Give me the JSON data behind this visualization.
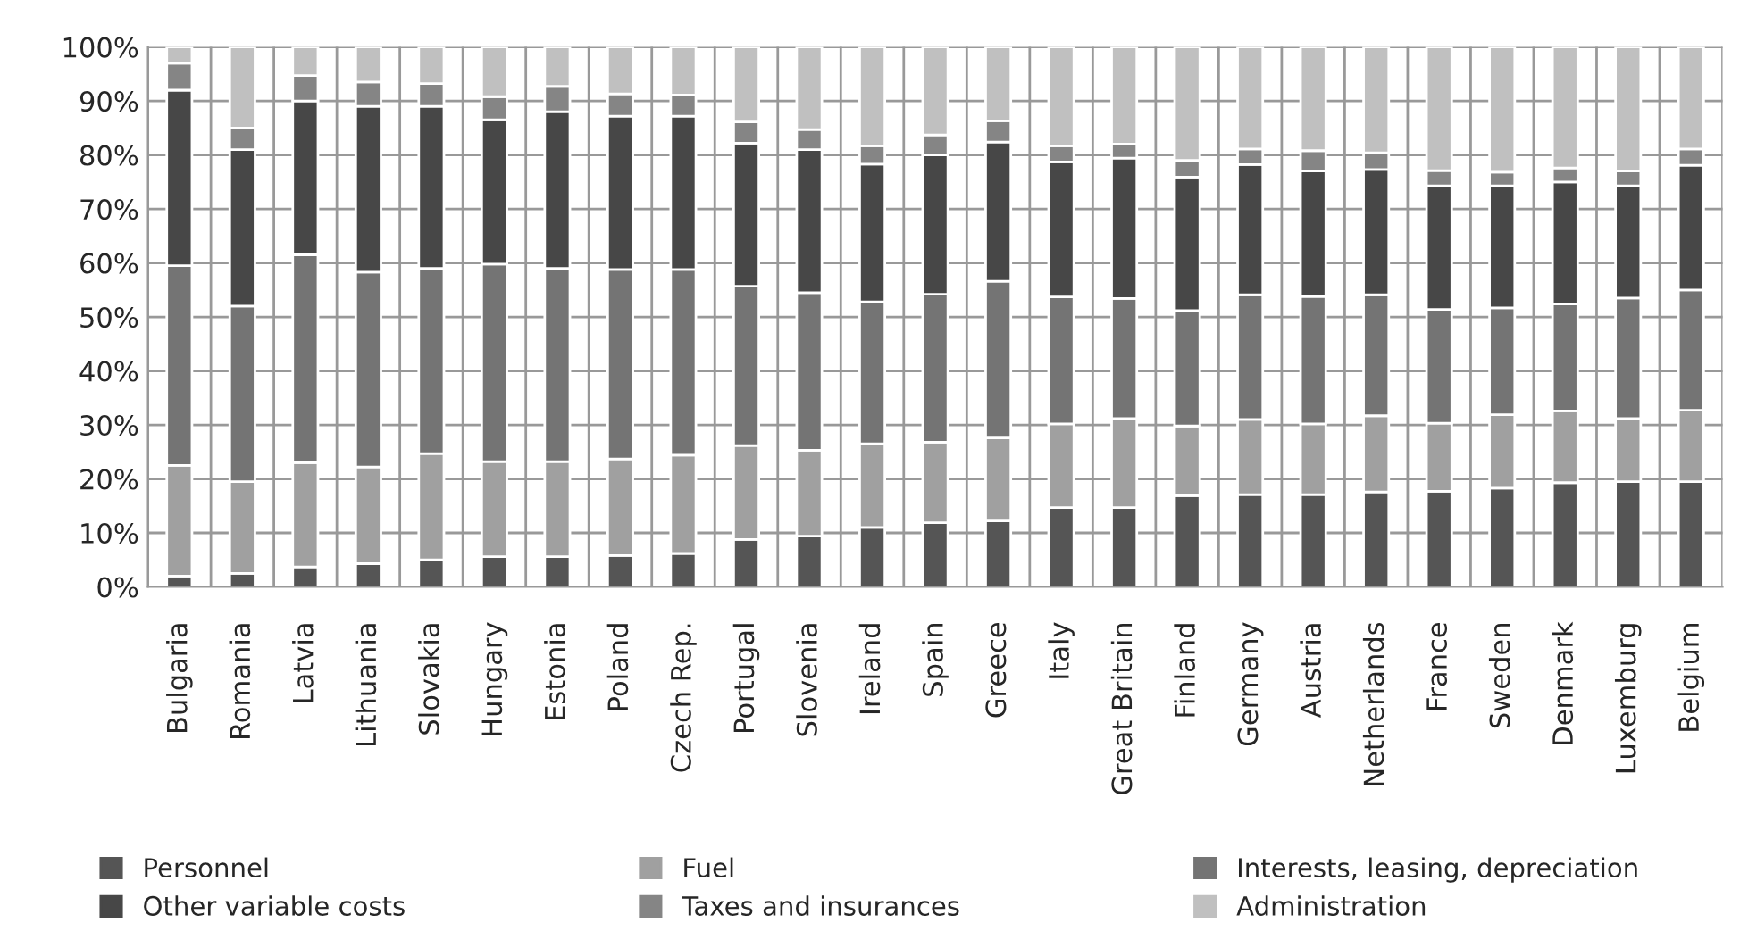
{
  "chart_data": {
    "type": "bar",
    "stacked": true,
    "categories": [
      "Bulgaria",
      "Romania",
      "Latvia",
      "Lithuania",
      "Slovakia",
      "Hungary",
      "Estonia",
      "Poland",
      "Czech Rep.",
      "Portugal",
      "Slovenia",
      "Ireland",
      "Spain",
      "Greece",
      "Italy",
      "Great Britain",
      "Finland",
      "Germany",
      "Austria",
      "Netherlands",
      "France",
      "Sweden",
      "Denmark",
      "Luxemburg",
      "Belgium"
    ],
    "series": [
      {
        "name": "Personnel",
        "color": "#555555",
        "values": [
          2,
          2.5,
          3.7,
          4.3,
          5,
          5.6,
          5.6,
          5.8,
          6.2,
          8.8,
          9.4,
          11,
          11.9,
          12.2,
          14.7,
          14.7,
          16.9,
          17.1,
          17.1,
          17.6,
          17.7,
          18.3,
          19.3,
          19.5,
          19.5
        ]
      },
      {
        "name": "Fuel",
        "color": "#a0a0a0",
        "values": [
          20.5,
          17,
          19.3,
          17.9,
          19.7,
          17.6,
          17.6,
          17.9,
          18.2,
          17.4,
          15.9,
          15.5,
          14.9,
          15.4,
          15.5,
          16.5,
          12.9,
          13.9,
          13.1,
          14.1,
          12.6,
          13.6,
          13.3,
          11.7,
          13.2
        ]
      },
      {
        "name": "Interests, leasing, depreciation",
        "color": "#747474",
        "values": [
          37,
          32.5,
          38.5,
          36.1,
          34.3,
          36.6,
          35.8,
          35.1,
          34.4,
          29.5,
          29.2,
          26.3,
          27.4,
          29,
          23.5,
          22.2,
          21.4,
          23.1,
          23.6,
          22.4,
          21.1,
          19.8,
          19.8,
          22.3,
          22.3
        ]
      },
      {
        "name": "Other variable costs",
        "color": "#474747",
        "values": [
          32.5,
          29,
          28.5,
          30.7,
          30,
          26.7,
          29,
          28.4,
          28.4,
          26.5,
          26.5,
          25.5,
          25.8,
          25.8,
          25,
          26,
          24.7,
          24.1,
          23.2,
          23.2,
          22.9,
          22.6,
          22.6,
          20.8,
          23.1
        ]
      },
      {
        "name": "Taxes and insurances",
        "color": "#858585",
        "values": [
          5,
          4,
          4.7,
          4.5,
          4.2,
          4.3,
          4.7,
          4.1,
          3.9,
          3.9,
          3.7,
          3.4,
          3.7,
          3.9,
          3,
          2.6,
          3.1,
          2.9,
          3.8,
          3.1,
          2.8,
          2.5,
          2.6,
          2.7,
          3
        ]
      },
      {
        "name": "Administration",
        "color": "#c0c0c0",
        "values": [
          3,
          15,
          5.3,
          6.5,
          6.8,
          9.2,
          7.3,
          8.7,
          8.9,
          13.9,
          15.3,
          18.3,
          16.3,
          13.7,
          18.3,
          18,
          21,
          18.9,
          19.2,
          19.6,
          22.9,
          23.2,
          22.4,
          23,
          18.9
        ]
      }
    ],
    "ylim": [
      0,
      100
    ],
    "yticks": [
      {
        "value": 0,
        "label": "0%"
      },
      {
        "value": 10,
        "label": "10%"
      },
      {
        "value": 20,
        "label": "20%"
      },
      {
        "value": 30,
        "label": "30%"
      },
      {
        "value": 40,
        "label": "40%"
      },
      {
        "value": 50,
        "label": "50%"
      },
      {
        "value": 60,
        "label": "60%"
      },
      {
        "value": 70,
        "label": "70%"
      },
      {
        "value": 80,
        "label": "80%"
      },
      {
        "value": 90,
        "label": "90%"
      },
      {
        "value": 100,
        "label": "100%"
      }
    ],
    "grid": true,
    "legend": "bottom"
  }
}
